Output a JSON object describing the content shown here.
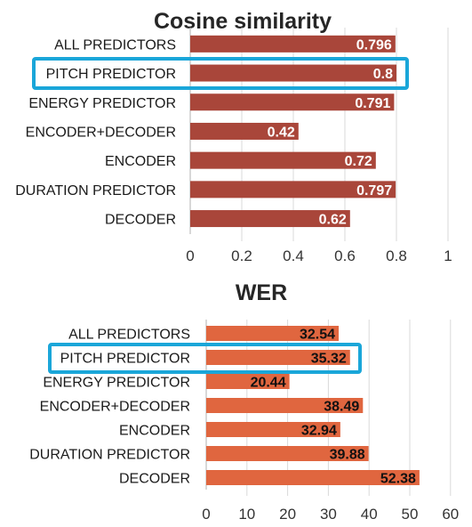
{
  "chart_data": [
    {
      "type": "bar",
      "orientation": "horizontal",
      "title": "Cosine similarity",
      "categories": [
        "ALL PREDICTORS",
        "PITCH PREDICTOR",
        "ENERGY PREDICTOR",
        "ENCODER+DECODER",
        "ENCODER",
        "DURATION PREDICTOR",
        "DECODER"
      ],
      "values": [
        0.796,
        0.8,
        0.791,
        0.42,
        0.72,
        0.797,
        0.62
      ],
      "data_labels": [
        "0.796",
        "0.8",
        "0.791",
        "0.42",
        "0.72",
        "0.797",
        "0.62"
      ],
      "xlim": [
        0,
        1
      ],
      "ticks": [
        "0",
        "0.2",
        "0.4",
        "0.6",
        "0.8",
        "1"
      ],
      "highlighted": "PITCH PREDICTOR",
      "bar_color": "#a9463a",
      "label_color": "#ffffff",
      "highlight_color": "#1aa6d9",
      "grid": true
    },
    {
      "type": "bar",
      "orientation": "horizontal",
      "title": "WER",
      "categories": [
        "ALL PREDICTORS",
        "PITCH PREDICTOR",
        "ENERGY PREDICTOR",
        "ENCODER+DECODER",
        "ENCODER",
        "DURATION PREDICTOR",
        "DECODER"
      ],
      "values": [
        32.54,
        35.32,
        20.44,
        38.49,
        32.94,
        39.88,
        52.38
      ],
      "data_labels": [
        "32.54",
        "35.32",
        "20.44",
        "38.49",
        "32.94",
        "39.88",
        "52.38"
      ],
      "xlim": [
        0,
        60
      ],
      "ticks": [
        "0",
        "10",
        "20",
        "30",
        "40",
        "50",
        "60"
      ],
      "highlighted": "PITCH PREDICTOR",
      "bar_color": "#e0663f",
      "label_color": "#111111",
      "highlight_color": "#1aa6d9",
      "grid": true
    }
  ]
}
